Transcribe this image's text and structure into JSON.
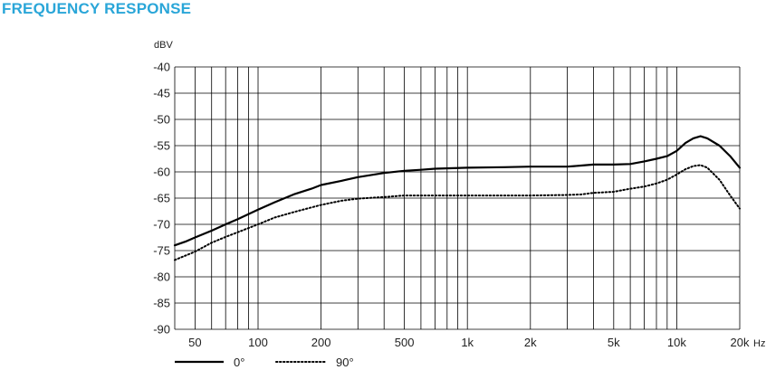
{
  "title": "FREQUENCY RESPONSE",
  "colors": {
    "title": "#2aa6d8",
    "grid": "#000000",
    "line": "#000000"
  },
  "chart_data": {
    "type": "line",
    "title": "FREQUENCY RESPONSE",
    "ylabel": "dBV",
    "xlabel": "",
    "x_unit": "Hz",
    "x_scale": "log",
    "xlim": [
      40,
      20000
    ],
    "ylim": [
      -90,
      -40
    ],
    "grid": true,
    "legend_position": "bottom-left",
    "y_ticks": [
      -40,
      -45,
      -50,
      -55,
      -60,
      -65,
      -70,
      -75,
      -80,
      -85,
      -90
    ],
    "y_tick_labels": [
      "-40",
      "-45",
      "-50",
      "-55",
      "-60",
      "-65",
      "-70",
      "-75",
      "-80",
      "-85",
      "-90"
    ],
    "x_ticks": [
      50,
      100,
      200,
      500,
      1000,
      2000,
      5000,
      10000,
      20000
    ],
    "x_tick_labels": [
      "50",
      "100",
      "200",
      "500",
      "1k",
      "2k",
      "5k",
      "10k",
      "20k"
    ],
    "x_gridlines": [
      40,
      50,
      60,
      70,
      80,
      90,
      100,
      200,
      300,
      400,
      500,
      600,
      700,
      800,
      900,
      1000,
      2000,
      3000,
      4000,
      5000,
      6000,
      7000,
      8000,
      9000,
      10000,
      20000
    ],
    "series": [
      {
        "name": "0°",
        "style": "solid",
        "x": [
          40,
          45,
          50,
          60,
          70,
          80,
          100,
          120,
          150,
          180,
          200,
          250,
          300,
          400,
          500,
          600,
          700,
          1000,
          1500,
          2000,
          3000,
          3500,
          4000,
          5000,
          6000,
          7000,
          8000,
          9000,
          10000,
          11000,
          12000,
          13000,
          14000,
          16000,
          18000,
          20000
        ],
        "y": [
          -74,
          -73.3,
          -72.5,
          -71.2,
          -70,
          -69,
          -67.2,
          -65.8,
          -64.2,
          -63.2,
          -62.5,
          -61.7,
          -61,
          -60.2,
          -59.8,
          -59.6,
          -59.4,
          -59.2,
          -59.1,
          -59,
          -59,
          -58.8,
          -58.6,
          -58.6,
          -58.5,
          -58,
          -57.5,
          -57,
          -56,
          -54.5,
          -53.6,
          -53.2,
          -53.6,
          -55,
          -57,
          -59.2
        ]
      },
      {
        "name": "90°",
        "style": "dotted",
        "x": [
          40,
          50,
          60,
          70,
          80,
          100,
          120,
          150,
          200,
          250,
          300,
          400,
          500,
          700,
          1000,
          1500,
          2000,
          3000,
          3500,
          4000,
          5000,
          6000,
          7000,
          8000,
          9000,
          10000,
          11000,
          12000,
          13000,
          14000,
          16000,
          18000,
          20000
        ],
        "y": [
          -76.8,
          -75.2,
          -73.5,
          -72.4,
          -71.5,
          -70,
          -68.7,
          -67.6,
          -66.3,
          -65.5,
          -65.1,
          -64.8,
          -64.5,
          -64.5,
          -64.5,
          -64.5,
          -64.5,
          -64.4,
          -64.3,
          -64,
          -63.8,
          -63.2,
          -62.8,
          -62.2,
          -61.5,
          -60.5,
          -59.5,
          -58.9,
          -58.7,
          -59.2,
          -61.5,
          -64.5,
          -67
        ]
      }
    ]
  }
}
